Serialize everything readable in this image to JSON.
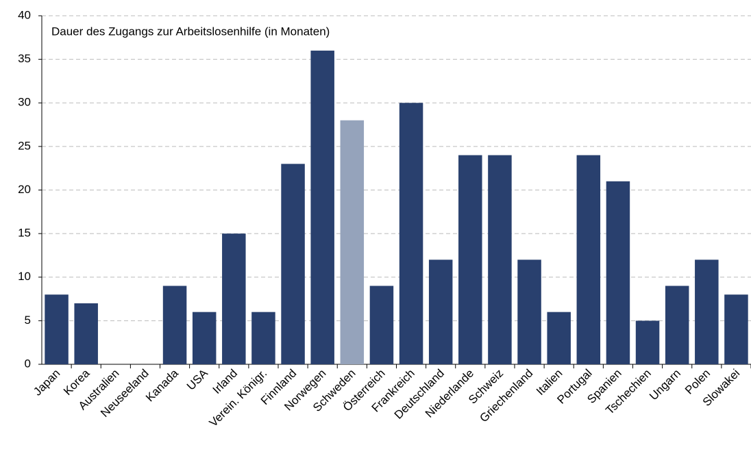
{
  "chart_data": {
    "type": "bar",
    "title": "Dauer des Zugangs zur Arbeitslosenhilfe (in Monaten)",
    "categories": [
      "Japan",
      "Korea",
      "Australien",
      "Neuseeland",
      "Kanada",
      "USA",
      "Irland",
      "Verein. Königr.",
      "Finnland",
      "Norwegen",
      "Schweden",
      "Österreich",
      "Frankreich",
      "Deutschland",
      "Niederlande",
      "Schweiz",
      "Griechenland",
      "Italien",
      "Portugal",
      "Spanien",
      "Tschechien",
      "Ungarn",
      "Polen",
      "Slowakei"
    ],
    "values": [
      8,
      7,
      0,
      0,
      9,
      6,
      15,
      6,
      23,
      36,
      28,
      9,
      30,
      12,
      24,
      24,
      12,
      6,
      24,
      21,
      5,
      9,
      12,
      8
    ],
    "colors": [
      "#29406e",
      "#29406e",
      "#29406e",
      "#29406e",
      "#29406e",
      "#29406e",
      "#29406e",
      "#29406e",
      "#29406e",
      "#29406e",
      "#95a3bb",
      "#29406e",
      "#29406e",
      "#29406e",
      "#29406e",
      "#29406e",
      "#29406e",
      "#29406e",
      "#29406e",
      "#29406e",
      "#29406e",
      "#29406e",
      "#29406e",
      "#29406e"
    ],
    "ylim": [
      0,
      40
    ],
    "yticks": [
      0,
      5,
      10,
      15,
      20,
      25,
      30,
      35,
      40
    ],
    "grid": true
  }
}
